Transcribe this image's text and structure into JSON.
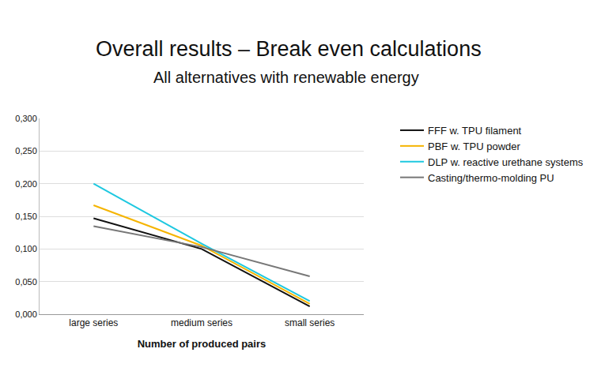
{
  "chart_data": {
    "type": "line",
    "title": "Overall results – Break even calculations",
    "subtitle": "All alternatives with renewable energy",
    "x_label": "Number of produced pairs",
    "categories": [
      "large series",
      "medium series",
      "small series"
    ],
    "series": [
      {
        "name": "FFF w. TPU filament",
        "color": "#111111",
        "values": [
          0.147,
          0.1,
          0.012
        ]
      },
      {
        "name": "PBF w. TPU powder",
        "color": "#f5b400",
        "values": [
          0.167,
          0.105,
          0.016
        ]
      },
      {
        "name": "DLP w. reactive urethane systems",
        "color": "#1ec8e0",
        "values": [
          0.2,
          0.108,
          0.02
        ]
      },
      {
        "name": "Casting/thermo-molding PU",
        "color": "#777777",
        "values": [
          0.135,
          0.103,
          0.058
        ]
      }
    ],
    "ylim": [
      0,
      0.3
    ],
    "yticks": [
      {
        "value": 0,
        "label": "0,000"
      },
      {
        "value": 0.05,
        "label": "0,050"
      },
      {
        "value": 0.1,
        "label": "0,100"
      },
      {
        "value": 0.15,
        "label": "0,150"
      },
      {
        "value": 0.2,
        "label": "0,200"
      },
      {
        "value": 0.25,
        "label": "0,250"
      },
      {
        "value": 0.3,
        "label": "0,300"
      }
    ],
    "grid": true,
    "legend": "right"
  }
}
